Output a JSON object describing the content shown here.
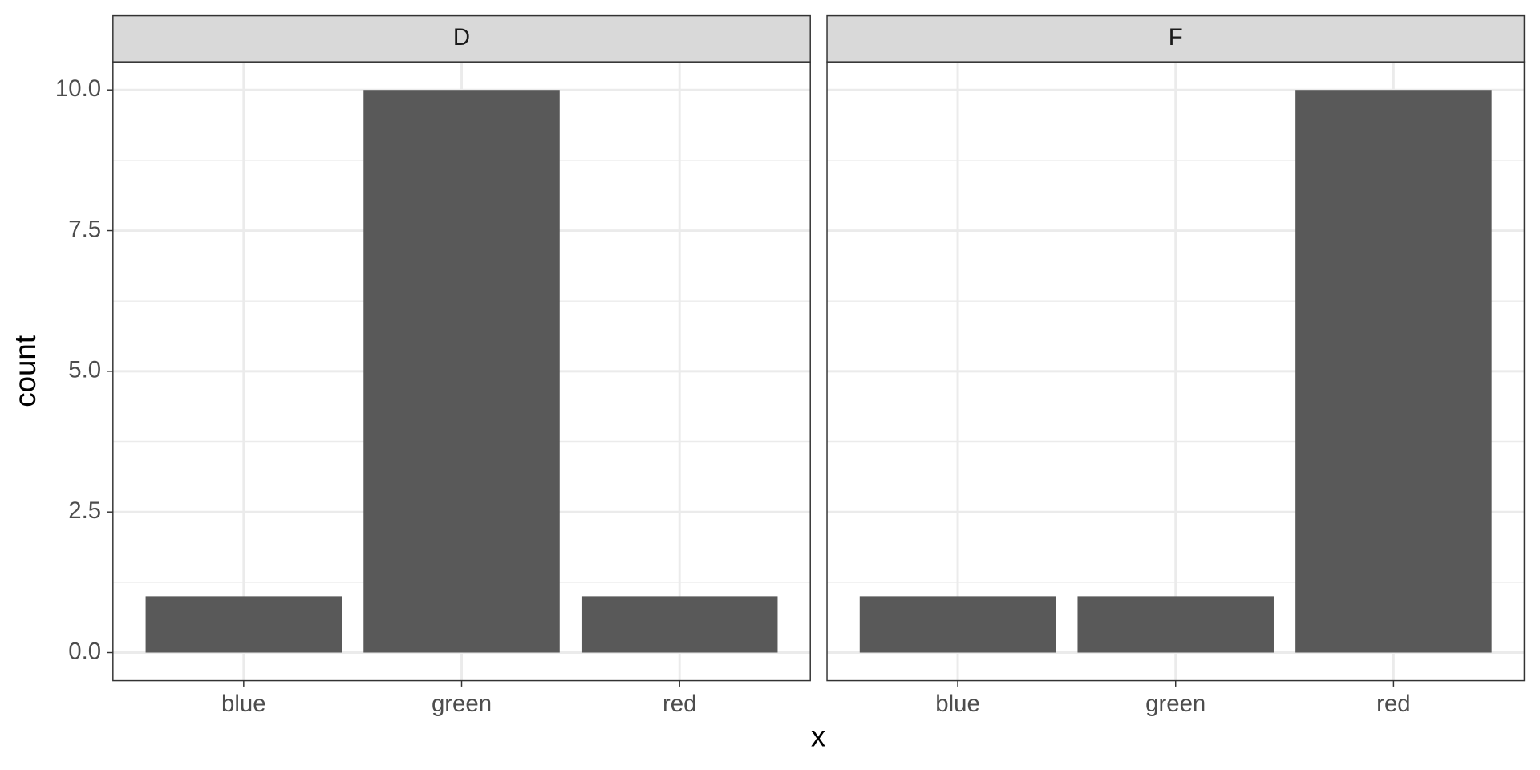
{
  "chart_data": {
    "type": "bar",
    "xlabel": "x",
    "ylabel": "count",
    "color": "#595959",
    "grid": true,
    "ylim": [
      -0.5,
      10.5
    ],
    "yticks": [
      {
        "value": 0,
        "label": "0.0"
      },
      2.5,
      {
        "value": 5,
        "label": "5.0"
      },
      7.5,
      {
        "value": 10,
        "label": "10.0"
      }
    ],
    "facets": [
      {
        "title": "D",
        "categories": [
          "blue",
          "green",
          "red"
        ],
        "values": [
          1,
          10,
          1
        ]
      },
      {
        "title": "F",
        "categories": [
          "blue",
          "green",
          "red"
        ],
        "values": [
          1,
          1,
          10
        ]
      }
    ]
  }
}
